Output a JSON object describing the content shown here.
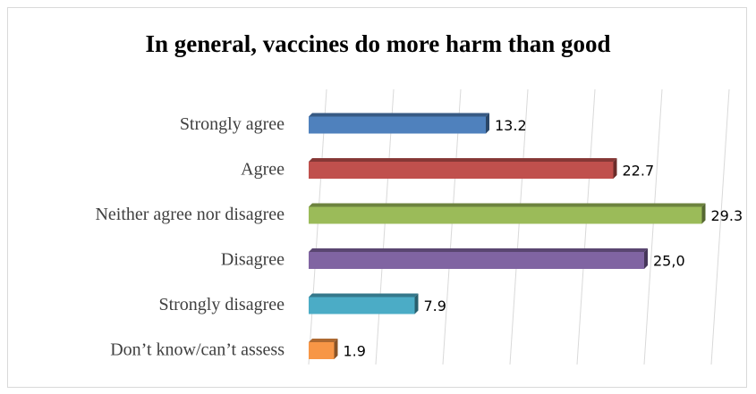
{
  "chart_data": {
    "type": "bar",
    "orientation": "horizontal",
    "title": "In general, vaccines do more harm than good",
    "xlabel": "",
    "ylabel": "",
    "categories": [
      "Strongly agree",
      "Agree",
      "Neither agree nor disagree",
      "Disagree",
      "Strongly disagree",
      "Don’t know/can’t assess"
    ],
    "values": [
      13.2,
      22.7,
      29.3,
      25.0,
      7.9,
      1.9
    ],
    "value_labels": [
      "13.2",
      "22.7",
      "29.3",
      "25,0",
      "7.9",
      "1.9"
    ],
    "colors": [
      "#4F81BD",
      "#C0504D",
      "#9BBB59",
      "#8064A2",
      "#4BACC6",
      "#F79646"
    ],
    "xlim": [
      0,
      30
    ],
    "grid": true,
    "legend": "none",
    "style": "3d"
  }
}
